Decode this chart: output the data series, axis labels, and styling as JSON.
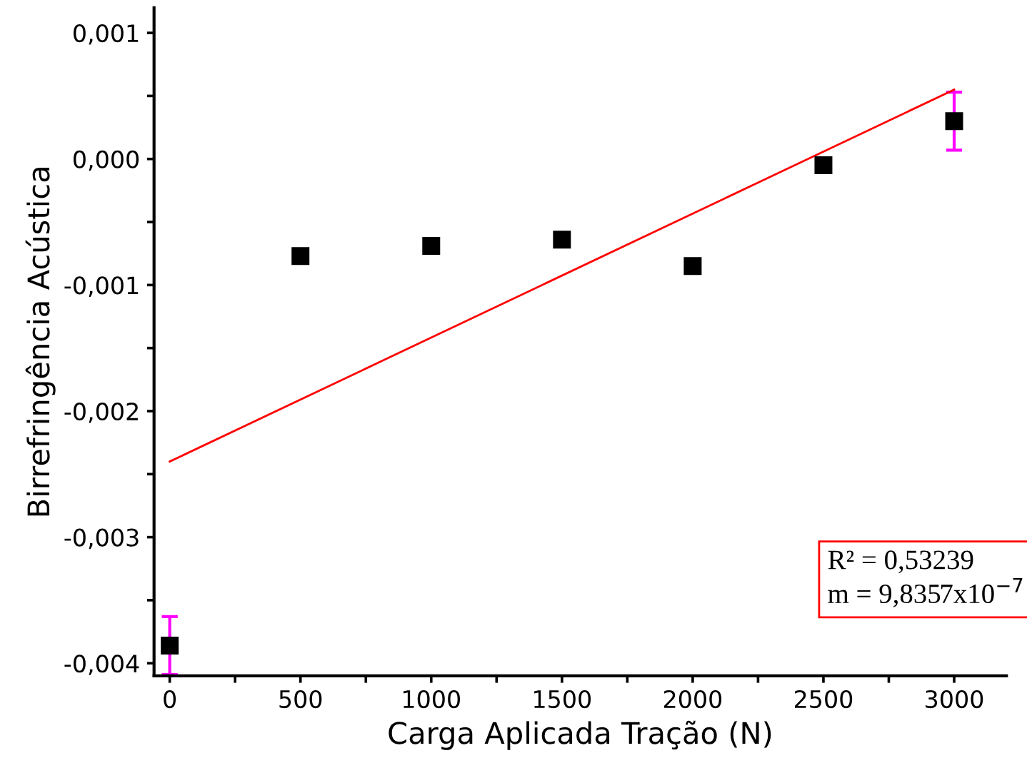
{
  "chart_data": {
    "type": "scatter",
    "xlabel": "Carga Aplicada Tração (N)",
    "ylabel": "Birrefringência Acústica",
    "x": [
      0,
      500,
      1000,
      1500,
      2000,
      2500,
      3000
    ],
    "series": [
      {
        "color": "#000000",
        "marker": "square",
        "values": [
          -0.00386,
          -0.00077,
          -0.00069,
          -0.00064,
          -0.00085,
          -5e-05,
          0.0003
        ],
        "errors": [
          0.00023,
          null,
          null,
          null,
          null,
          null,
          0.00023
        ]
      },
      {
        "type": "line",
        "color": "#ff0000",
        "x": [
          0,
          3000
        ],
        "values": [
          -0.0024,
          0.00055
        ]
      }
    ],
    "xlim": [
      -60,
      3200
    ],
    "xticks": [
      0,
      {
        "value": 250,
        "label": null
      },
      500,
      {
        "value": 750,
        "label": null
      },
      1000,
      {
        "value": 1250,
        "label": null
      },
      1500,
      {
        "value": 1750,
        "label": null
      },
      2000,
      {
        "value": 2250,
        "label": null
      },
      2500,
      {
        "value": 2750,
        "label": null
      },
      3000
    ],
    "ylim": [
      -0.0041,
      0.0012
    ],
    "yticks": [
      {
        "value": -0.004,
        "label": "-0,004"
      },
      {
        "value": -0.0035,
        "label": null
      },
      {
        "value": -0.003,
        "label": "-0,003"
      },
      {
        "value": -0.0025,
        "label": null
      },
      {
        "value": -0.002,
        "label": "-0,002"
      },
      {
        "value": -0.0015,
        "label": null
      },
      {
        "value": -0.001,
        "label": "-0,001"
      },
      {
        "value": -0.0005,
        "label": null
      },
      {
        "value": 0.0,
        "label": "0,000"
      },
      {
        "value": 0.0005,
        "label": null
      },
      {
        "value": 0.001,
        "label": "0,001"
      }
    ],
    "grid": false,
    "legend": false,
    "annotations": [
      "R² = 0,53239\nm = 9,8357x10$^{−7}$"
    ]
  }
}
